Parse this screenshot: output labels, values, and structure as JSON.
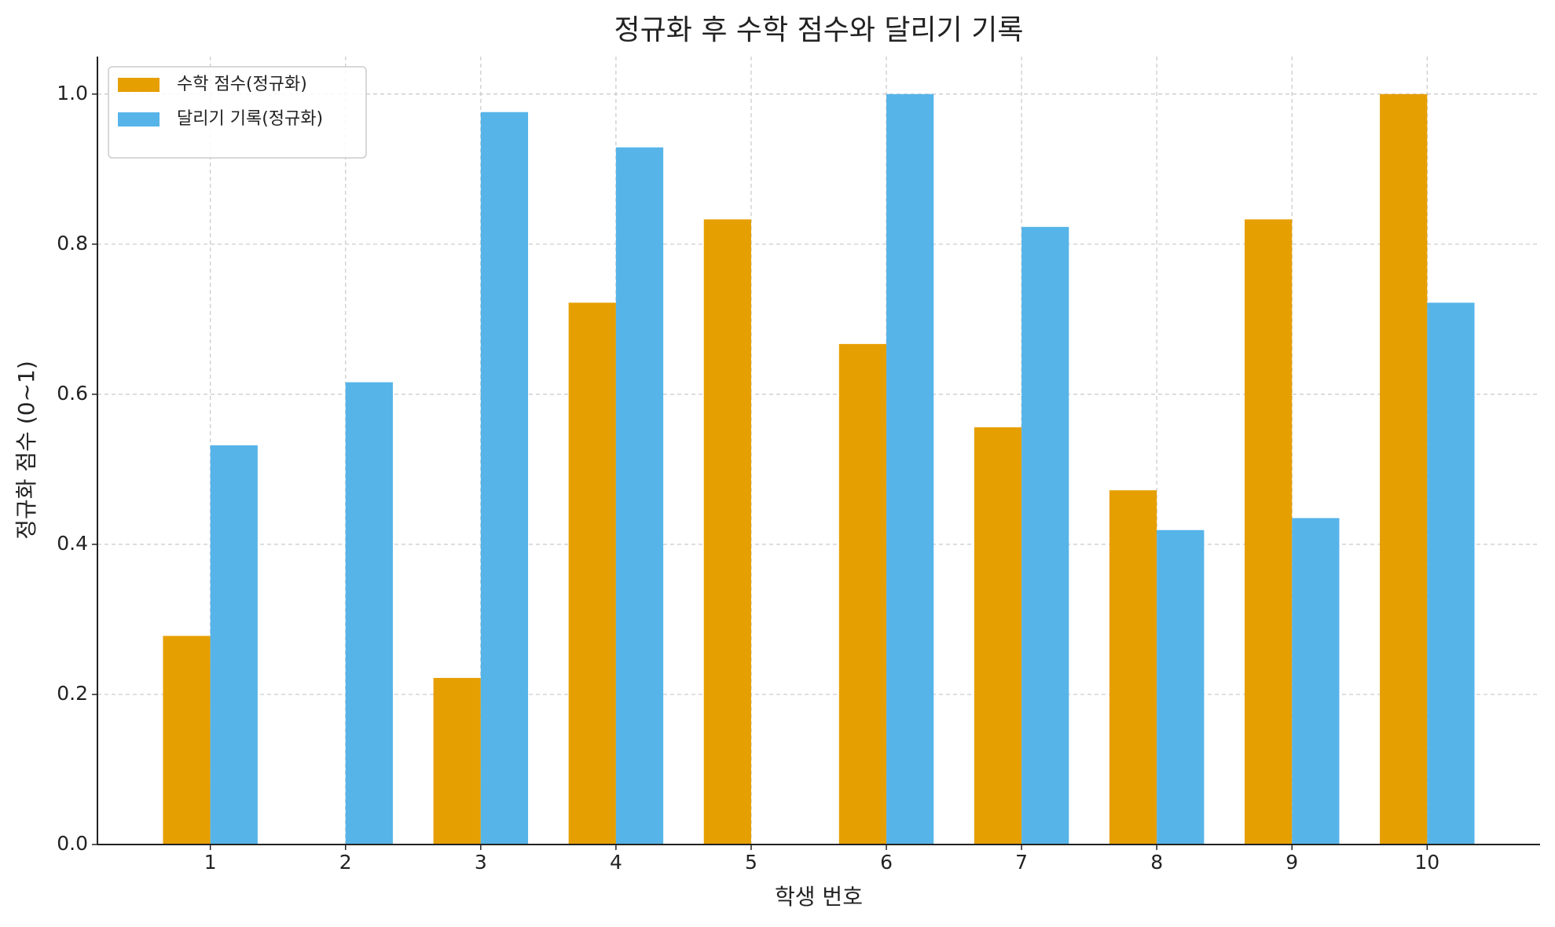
{
  "chart_data": {
    "type": "bar",
    "title": "정규화 후 수학 점수와 달리기 기록",
    "x_label": "학생 번호",
    "y_label": "정규화 점수 (0~1)",
    "x": [
      1,
      2,
      3,
      4,
      5,
      6,
      7,
      8,
      9,
      10
    ],
    "xlim": [
      0.165,
      10.835
    ],
    "xticks": [
      1,
      2,
      3,
      4,
      5,
      6,
      7,
      8,
      9,
      10
    ],
    "ylim": [
      0,
      1.05
    ],
    "yticks": [
      {
        "value": 0,
        "label": "0.0"
      },
      {
        "value": 0.2,
        "label": "0.2"
      },
      {
        "value": 0.4,
        "label": "0.4"
      },
      {
        "value": 0.6,
        "label": "0.6"
      },
      {
        "value": 0.8,
        "label": "0.8"
      },
      {
        "value": 1,
        "label": "1.0"
      }
    ],
    "grid": true,
    "legend": "upper left",
    "series": [
      {
        "name": "수학 점수(정규화)",
        "color": "#e69f00",
        "values": [
          0.278,
          0,
          0.222,
          0.722,
          0.833,
          0.667,
          0.556,
          0.472,
          0.833,
          1.0
        ]
      },
      {
        "name": "달리기 기록(정규화)",
        "color": "#56b4e9",
        "values": [
          0.532,
          0.616,
          0.976,
          0.929,
          0,
          1.0,
          0.823,
          0.419,
          0.435,
          0.722
        ]
      }
    ]
  }
}
